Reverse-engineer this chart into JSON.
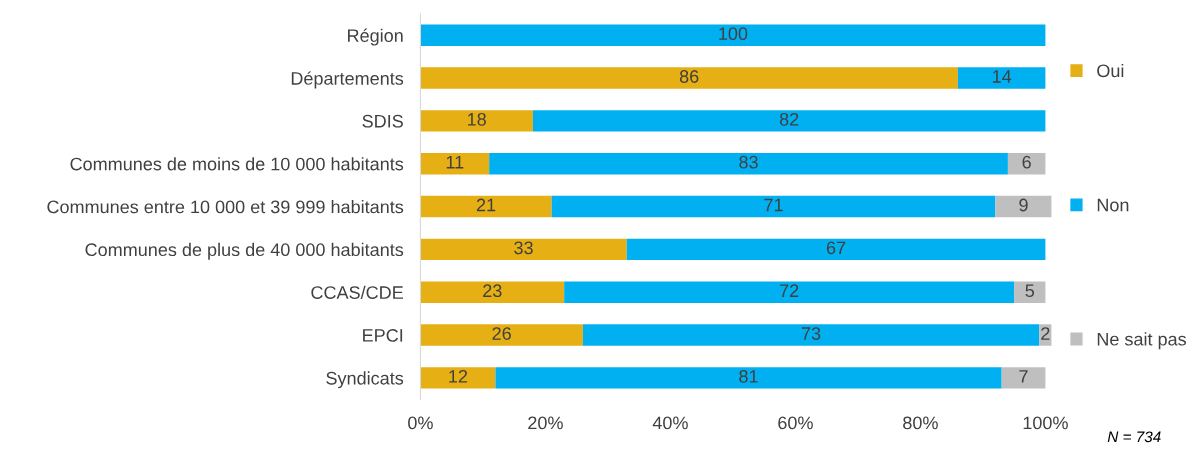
{
  "chart_data": {
    "type": "bar",
    "orientation": "horizontal",
    "stacked": true,
    "data_labels": true,
    "legend": "right",
    "grid": false,
    "categories": [
      "Région",
      "Départements",
      "SDIS",
      "Communes de moins de 10 000 habitants",
      "Communes entre 10 000 et 39 999 habitants",
      "Communes de plus de 40 000 habitants",
      "CCAS/CDE",
      "EPCI",
      "Syndicats"
    ],
    "series": [
      {
        "name": "Oui",
        "color": "#e6af14",
        "values": [
          null,
          86,
          18,
          11,
          21,
          33,
          23,
          26,
          12
        ]
      },
      {
        "name": "Non",
        "color": "#00b0f0",
        "values": [
          100,
          14,
          82,
          83,
          71,
          67,
          72,
          73,
          81
        ]
      },
      {
        "name": "Ne sait pas",
        "color": "#bfbfbf",
        "values": [
          null,
          null,
          null,
          6,
          9,
          null,
          5,
          2,
          7
        ]
      }
    ],
    "xlim": [
      0,
      101
    ],
    "xticks": [
      {
        "value": 0,
        "label": "0%"
      },
      {
        "value": 20,
        "label": "20%"
      },
      {
        "value": 40,
        "label": "40%"
      },
      {
        "value": 60,
        "label": "60%"
      },
      {
        "value": 80,
        "label": "80%"
      },
      {
        "value": 100,
        "label": "100%"
      }
    ],
    "annotations": [
      "N = 734"
    ]
  }
}
